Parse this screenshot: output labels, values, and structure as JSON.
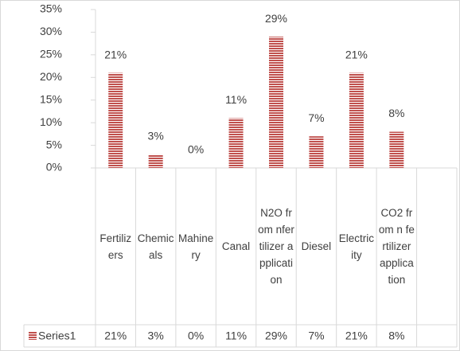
{
  "chart_data": {
    "type": "bar",
    "categories": [
      "Fertilizers",
      "Chemicals",
      "Mahinery",
      "Canal",
      "N2O from nfertilizer application",
      "Diesel",
      "Electricity",
      "CO2 from n fertilizer application",
      null
    ],
    "series": [
      {
        "name": "Series1",
        "color": "#c0504d",
        "values": [
          21,
          3,
          0,
          11,
          29,
          7,
          21,
          8,
          null
        ],
        "value_labels": [
          "21%",
          "3%",
          "0%",
          "11%",
          "29%",
          "7%",
          "21%",
          "8%",
          null
        ]
      }
    ],
    "ylim": [
      0,
      35
    ],
    "yticks": [
      {
        "value": 0,
        "label": "0%"
      },
      {
        "value": 5,
        "label": "5%"
      },
      {
        "value": 10,
        "label": "10%"
      },
      {
        "value": 15,
        "label": "15%"
      },
      {
        "value": 20,
        "label": "20%"
      },
      {
        "value": 25,
        "label": "25%"
      },
      {
        "value": 30,
        "label": "30%"
      },
      {
        "value": 35,
        "label": "35%"
      }
    ],
    "grid": false,
    "data_table": true
  }
}
